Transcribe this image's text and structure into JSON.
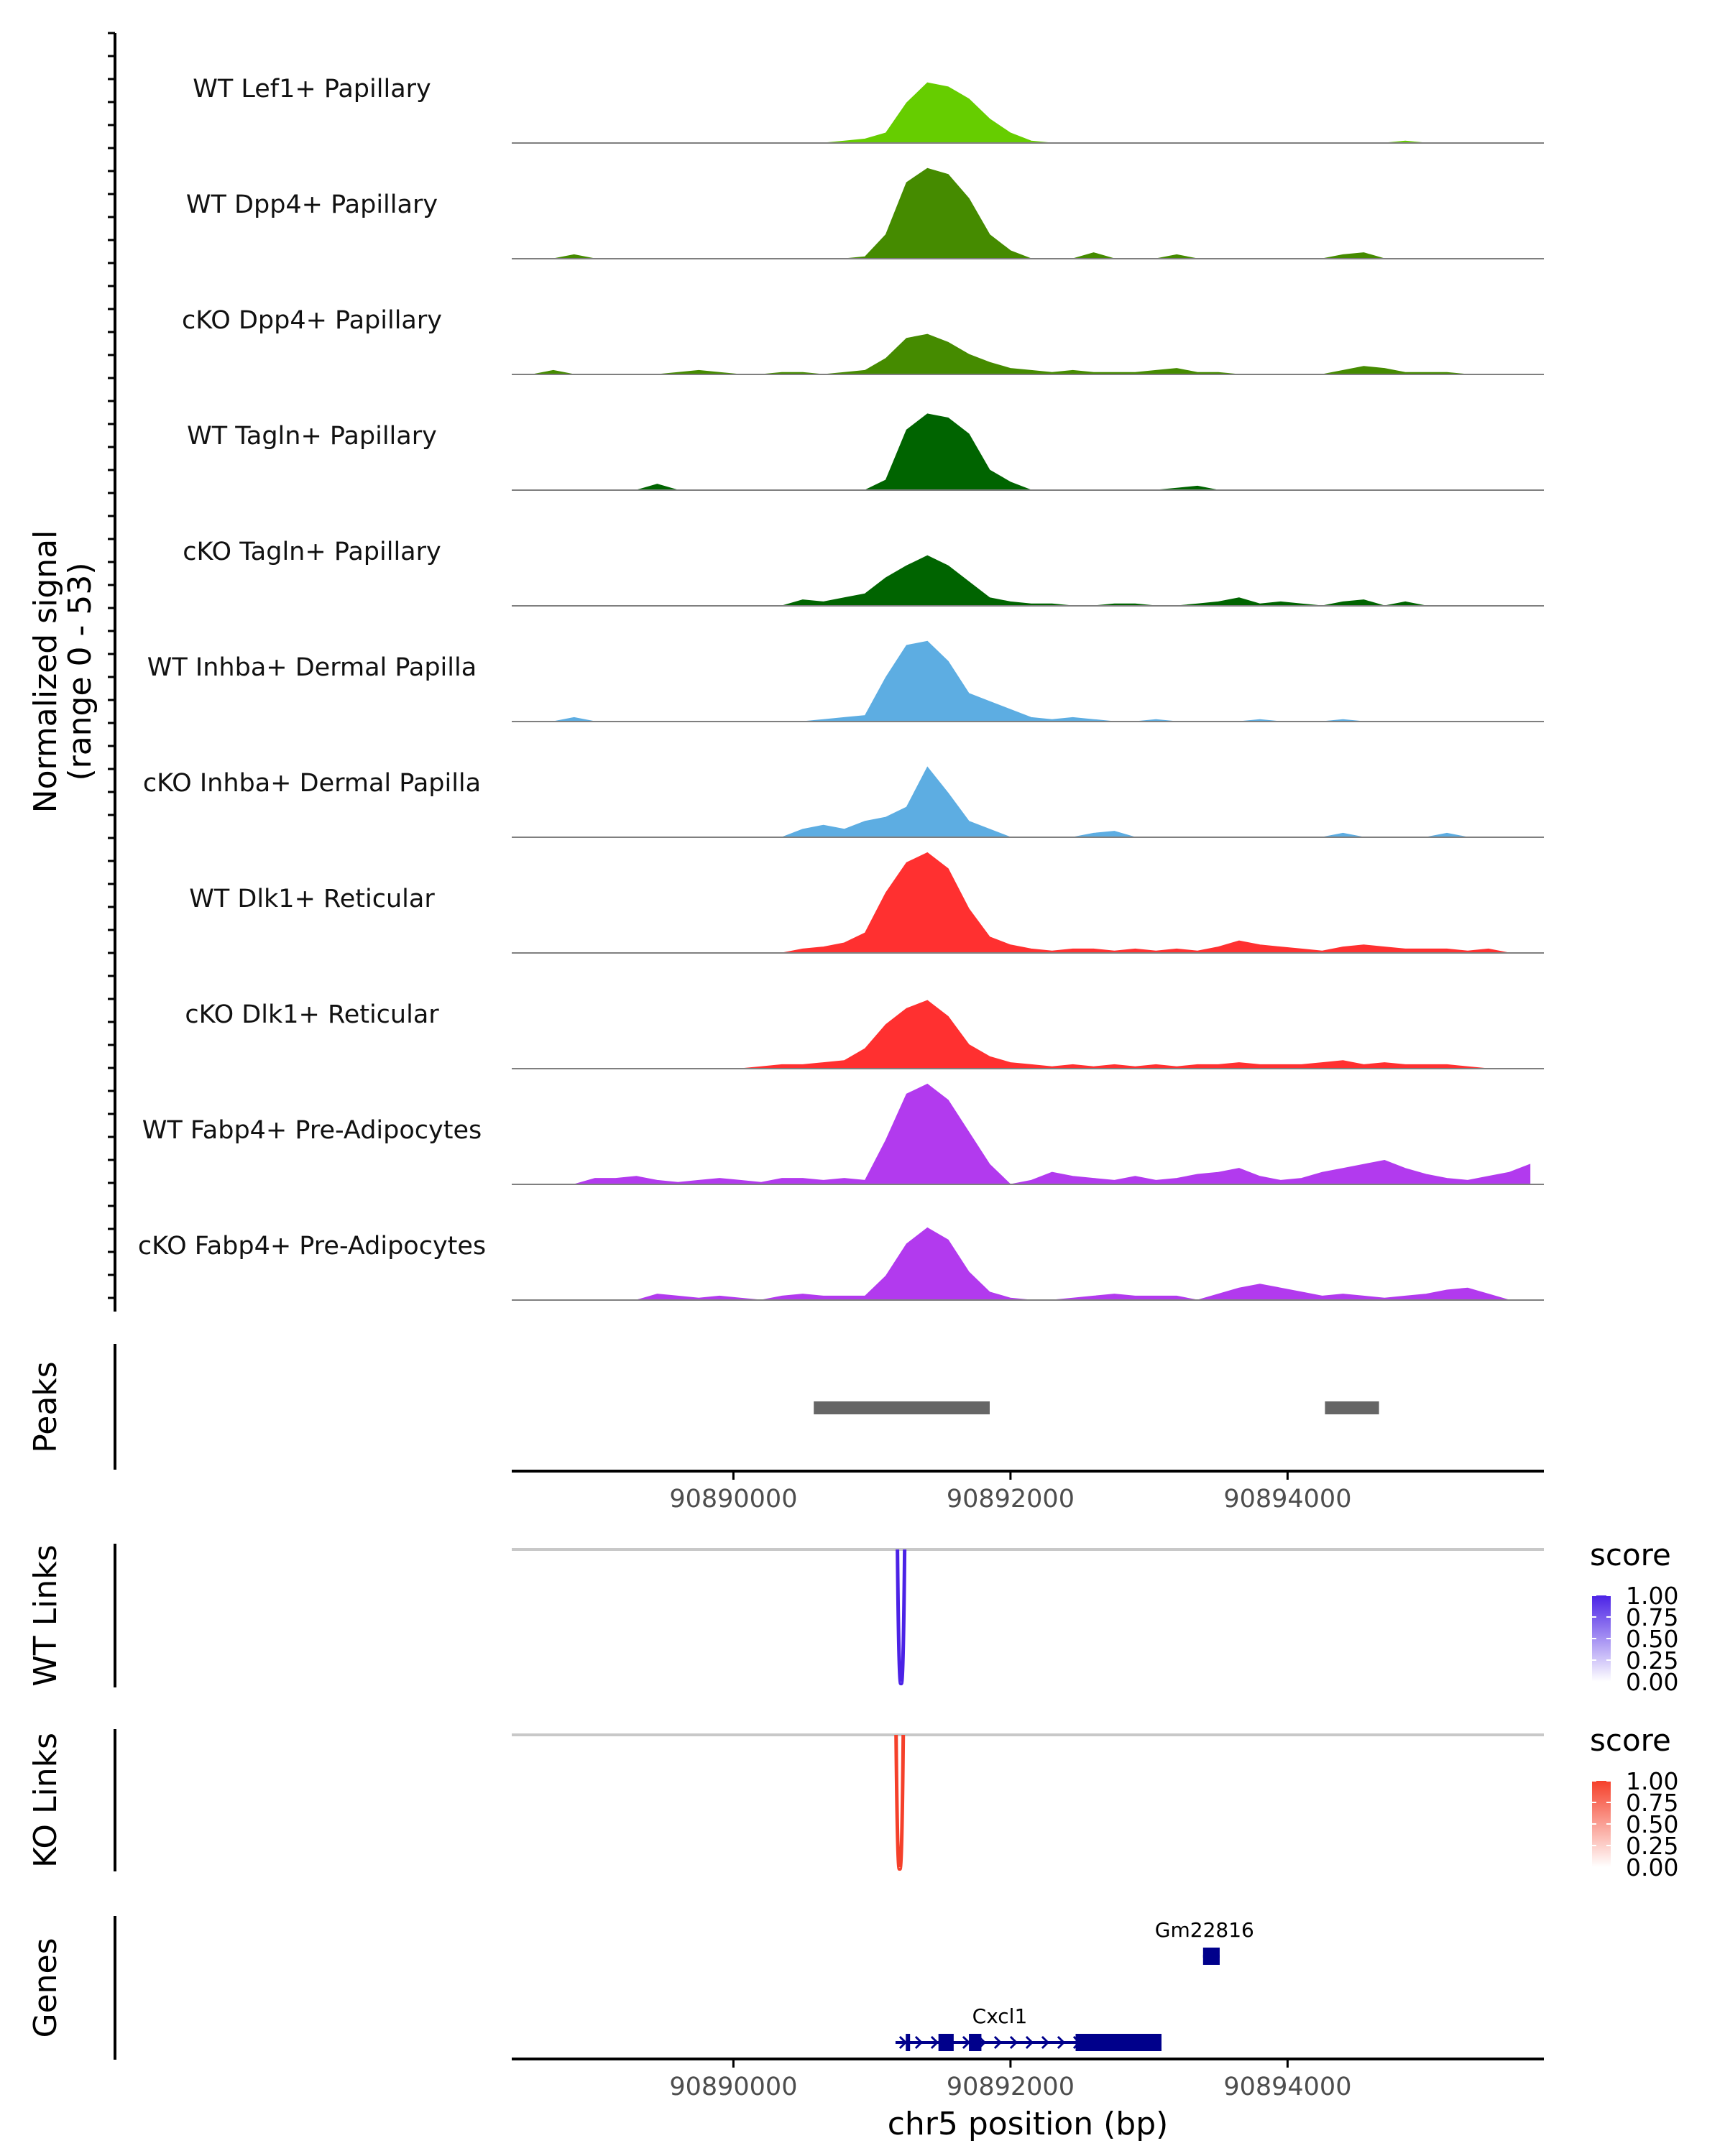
{
  "chart_data": {
    "type": "area",
    "figure": "Genome coverage plot",
    "xlabel": "chr5 position (bp)",
    "xlim": [
      90888400,
      90895850
    ],
    "xticks": [
      90890000,
      90892000,
      90894000
    ],
    "xtick_labels": [
      "90890000",
      "90892000",
      "90894000"
    ],
    "coverage": {
      "ylabel_line1": "Normalized signal",
      "ylabel_line2": "(range 0 - 53)",
      "ylim": [
        0,
        53
      ],
      "x_start": 90888400,
      "x_step": 150,
      "tracks": [
        {
          "label": "WT Lef1+ Papillary",
          "color": "#66CD00",
          "values": [
            0,
            0,
            0,
            0,
            0,
            0,
            0,
            0,
            0,
            0,
            0,
            0,
            0,
            0,
            0,
            0,
            1,
            2,
            5,
            20,
            30,
            28,
            22,
            12,
            5,
            1,
            0,
            0,
            0,
            0,
            0,
            0,
            0,
            0,
            0,
            0,
            0,
            0,
            0,
            0,
            0,
            0,
            0,
            1,
            0,
            0,
            0,
            0,
            0,
            0
          ]
        },
        {
          "label": "WT Dpp4+ Papillary",
          "color": "#458B00",
          "values": [
            0,
            0,
            0,
            2,
            0,
            0,
            0,
            0,
            0,
            0,
            0,
            0,
            0,
            0,
            0,
            0,
            0,
            1,
            12,
            38,
            45,
            42,
            30,
            12,
            4,
            0,
            0,
            0,
            3,
            0,
            0,
            0,
            2,
            0,
            0,
            0,
            0,
            0,
            0,
            0,
            2,
            3,
            0,
            0,
            0,
            0,
            0,
            0,
            0,
            0
          ]
        },
        {
          "label": "cKO Dpp4+ Papillary",
          "color": "#458B00",
          "values": [
            0,
            0,
            2,
            0,
            0,
            0,
            0,
            0,
            1,
            2,
            1,
            0,
            0,
            1,
            1,
            0,
            1,
            2,
            8,
            18,
            20,
            16,
            10,
            6,
            3,
            2,
            1,
            2,
            1,
            1,
            1,
            2,
            3,
            1,
            1,
            0,
            0,
            0,
            0,
            0,
            2,
            4,
            3,
            1,
            1,
            1,
            0,
            0,
            0,
            0
          ]
        },
        {
          "label": "WT Tagln+ Papillary",
          "color": "#006400",
          "values": [
            0,
            0,
            0,
            0,
            0,
            0,
            0,
            3,
            0,
            0,
            0,
            0,
            0,
            0,
            0,
            0,
            0,
            0,
            5,
            30,
            38,
            36,
            28,
            10,
            4,
            0,
            0,
            0,
            0,
            0,
            0,
            0,
            1,
            2,
            0,
            0,
            0,
            0,
            0,
            0,
            0,
            0,
            0,
            0,
            0,
            0,
            0,
            0,
            0,
            0
          ]
        },
        {
          "label": "cKO Tagln+ Papillary",
          "color": "#006400",
          "values": [
            0,
            0,
            0,
            0,
            0,
            0,
            0,
            0,
            0,
            0,
            0,
            0,
            0,
            0,
            3,
            2,
            4,
            6,
            14,
            20,
            25,
            20,
            12,
            4,
            2,
            1,
            1,
            0,
            0,
            1,
            1,
            0,
            0,
            1,
            2,
            4,
            1,
            2,
            1,
            0,
            2,
            3,
            0,
            2,
            0,
            0,
            0,
            0,
            0,
            0
          ]
        },
        {
          "label": "WT Inhba+ Dermal Papilla",
          "color": "#5DADE2",
          "values": [
            0,
            0,
            0,
            2,
            0,
            0,
            0,
            0,
            0,
            0,
            0,
            0,
            0,
            0,
            0,
            1,
            2,
            3,
            22,
            38,
            40,
            30,
            14,
            10,
            6,
            2,
            1,
            2,
            1,
            0,
            0,
            1,
            0,
            0,
            0,
            0,
            1,
            0,
            0,
            0,
            1,
            0,
            0,
            0,
            0,
            0,
            0,
            0,
            0,
            0
          ]
        },
        {
          "label": "cKO Inhba+ Dermal Papilla",
          "color": "#5DADE2",
          "values": [
            0,
            0,
            0,
            0,
            0,
            0,
            0,
            0,
            0,
            0,
            0,
            0,
            0,
            0,
            4,
            6,
            4,
            8,
            10,
            15,
            35,
            22,
            8,
            4,
            0,
            0,
            0,
            0,
            2,
            3,
            0,
            0,
            0,
            0,
            0,
            0,
            0,
            0,
            0,
            0,
            2,
            0,
            0,
            0,
            0,
            2,
            0,
            0,
            0,
            0
          ]
        },
        {
          "label": "WT Dlk1+ Reticular",
          "color": "#FF3030",
          "values": [
            0,
            0,
            0,
            0,
            0,
            0,
            0,
            0,
            0,
            0,
            0,
            0,
            0,
            0,
            2,
            3,
            5,
            10,
            30,
            45,
            50,
            42,
            22,
            8,
            4,
            2,
            1,
            2,
            2,
            1,
            2,
            1,
            2,
            1,
            3,
            6,
            4,
            3,
            2,
            1,
            3,
            4,
            3,
            2,
            2,
            2,
            1,
            2,
            0,
            0
          ]
        },
        {
          "label": "cKO Dlk1+ Reticular",
          "color": "#FF3030",
          "values": [
            0,
            0,
            0,
            0,
            0,
            0,
            0,
            0,
            0,
            0,
            0,
            0,
            1,
            2,
            2,
            3,
            4,
            10,
            22,
            30,
            34,
            26,
            12,
            6,
            3,
            2,
            1,
            2,
            1,
            2,
            1,
            2,
            1,
            2,
            2,
            3,
            2,
            2,
            2,
            3,
            4,
            2,
            3,
            2,
            2,
            2,
            1,
            0,
            0,
            0
          ]
        },
        {
          "label": "WT Fabp4+ Pre-Adipocytes",
          "color": "#B23AEE",
          "values": [
            0,
            0,
            0,
            0,
            3,
            3,
            4,
            2,
            1,
            2,
            3,
            2,
            1,
            3,
            3,
            2,
            3,
            2,
            22,
            45,
            50,
            42,
            26,
            10,
            0,
            2,
            6,
            4,
            3,
            2,
            4,
            2,
            3,
            5,
            6,
            8,
            4,
            2,
            3,
            6,
            8,
            10,
            12,
            8,
            5,
            3,
            2,
            4,
            6,
            10
          ]
        },
        {
          "label": "cKO Fabp4+ Pre-Adipocytes",
          "color": "#B23AEE",
          "values": [
            0,
            0,
            0,
            0,
            0,
            0,
            0,
            3,
            2,
            1,
            2,
            1,
            0,
            2,
            3,
            2,
            2,
            2,
            12,
            28,
            36,
            30,
            14,
            4,
            1,
            0,
            0,
            1,
            2,
            3,
            2,
            2,
            2,
            0,
            3,
            6,
            8,
            6,
            4,
            2,
            3,
            2,
            1,
            2,
            3,
            5,
            6,
            3,
            0,
            0
          ]
        }
      ]
    },
    "peaks": {
      "label": "Peaks",
      "color": "#666666",
      "regions": [
        {
          "start": 90890580,
          "end": 90891850
        },
        {
          "start": 90894270,
          "end": 90894660
        }
      ]
    },
    "links": [
      {
        "label": "WT Links",
        "color": "#4B22E6",
        "anchor": 90891210,
        "score": 1.0,
        "legend_title": "score",
        "legend_values": [
          "1.00",
          "0.75",
          "0.50",
          "0.25",
          "0.00"
        ]
      },
      {
        "label": "KO Links",
        "color": "#F5402A",
        "anchor": 90891200,
        "score": 1.0,
        "legend_title": "score",
        "legend_values": [
          "1.00",
          "0.75",
          "0.50",
          "0.25",
          "0.00"
        ]
      }
    ],
    "genes": {
      "label": "Genes",
      "color": "#00008B",
      "items": [
        {
          "name": "Gm22816",
          "strand": "+",
          "start": 90893390,
          "end": 90893510,
          "exons": [
            [
              90893390,
              90893510
            ]
          ]
        },
        {
          "name": "Cxcl1",
          "strand": "+",
          "start": 90891170,
          "end": 90893090,
          "exons": [
            [
              91244,
              91270
            ],
            [
              91480,
              91590
            ],
            [
              91700,
              91790
            ],
            [
              92470,
              93090
            ]
          ],
          "exon_offset": 90800000
        }
      ]
    }
  }
}
